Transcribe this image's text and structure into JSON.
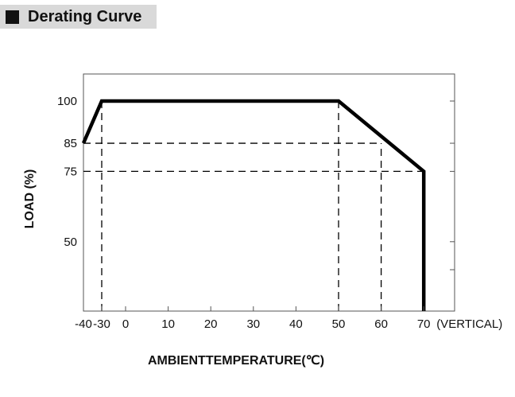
{
  "header": {
    "title": "Derating Curve"
  },
  "chart_data": {
    "type": "line",
    "xlabel": "AMBIENTTEMPERATURE(℃)",
    "ylabel": "LOAD (%)",
    "x_ticks": [
      "-40",
      "-30",
      "0",
      "10",
      "20",
      "30",
      "40",
      "50",
      "60",
      "70"
    ],
    "x_suffix": "(VERTICAL)",
    "y_ticks": [
      "100",
      "85",
      "75",
      "50"
    ],
    "xlim": [
      -40,
      80
    ],
    "ylim": [
      0,
      100
    ],
    "series": [
      {
        "x": [
          -40,
          -30,
          50,
          70,
          70
        ],
        "y": [
          85,
          100,
          100,
          75,
          0
        ]
      }
    ],
    "guides": [
      {
        "x": [
          -40,
          60
        ],
        "y": [
          85,
          85
        ]
      },
      {
        "x": [
          -40,
          70
        ],
        "y": [
          75,
          75
        ]
      },
      {
        "x": [
          -30,
          -30
        ],
        "y": [
          0,
          100
        ]
      },
      {
        "x": [
          50,
          50
        ],
        "y": [
          0,
          100
        ]
      },
      {
        "x": [
          60,
          60
        ],
        "y": [
          0,
          85
        ]
      }
    ],
    "grid": false,
    "colors": {
      "line": "#000000",
      "guide": "#000000",
      "frame": "#555555"
    }
  }
}
